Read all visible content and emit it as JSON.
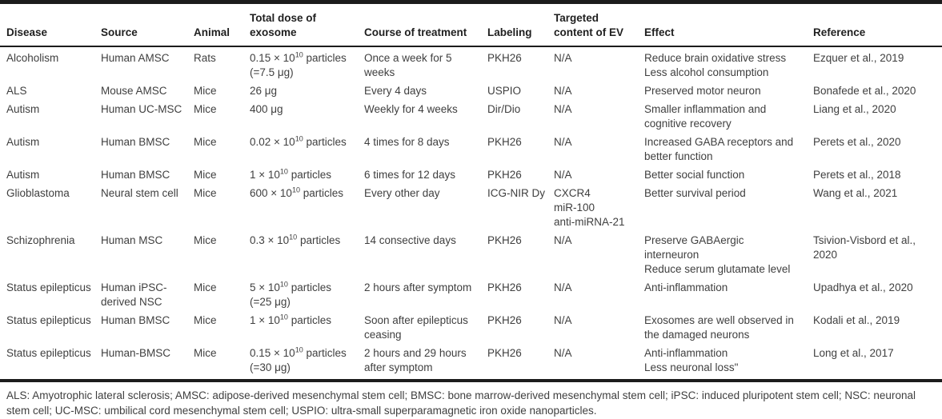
{
  "table": {
    "columns": [
      {
        "key": "disease",
        "label": "Disease"
      },
      {
        "key": "source",
        "label": "Source"
      },
      {
        "key": "animal",
        "label": "Animal"
      },
      {
        "key": "dose",
        "label": "Total dose of\nexosome"
      },
      {
        "key": "course",
        "label": "Course of treatment"
      },
      {
        "key": "labeling",
        "label": "Labeling"
      },
      {
        "key": "targeted",
        "label": "Targeted\ncontent of EV"
      },
      {
        "key": "effect",
        "label": "Effect"
      },
      {
        "key": "reference",
        "label": "Reference"
      }
    ],
    "rows": [
      {
        "disease": "Alcoholism",
        "source": "Human AMSC",
        "animal": "Rats",
        "dose": "0.15 × 10^{10} particles\n(=7.5 μg)",
        "course": "Once a week for 5\nweeks",
        "labeling": "PKH26",
        "targeted": "N/A",
        "effect": "Reduce brain oxidative stress\nLess alcohol consumption",
        "reference": "Ezquer et al., 2019"
      },
      {
        "disease": "ALS",
        "source": "Mouse AMSC",
        "animal": "Mice",
        "dose": "26 μg",
        "course": "Every 4 days",
        "labeling": "USPIO",
        "targeted": "N/A",
        "effect": "Preserved motor neuron",
        "reference": "Bonafede et al., 2020"
      },
      {
        "disease": "Autism",
        "source": "Human UC-MSC",
        "animal": "Mice",
        "dose": "400 μg",
        "course": "Weekly for 4 weeks",
        "labeling": "Dir/Dio",
        "targeted": "N/A",
        "effect": "Smaller inflammation and\ncognitive recovery",
        "reference": "Liang et al., 2020"
      },
      {
        "disease": "Autism",
        "source": "Human BMSC",
        "animal": "Mice",
        "dose": "0.02 × 10^{10} particles",
        "course": "4 times for 8 days",
        "labeling": "PKH26",
        "targeted": "N/A",
        "effect": "Increased GABA receptors and\nbetter function",
        "reference": "Perets et al., 2020"
      },
      {
        "disease": "Autism",
        "source": "Human BMSC",
        "animal": "Mice",
        "dose": "1 × 10^{10} particles",
        "course": "6 times for 12 days",
        "labeling": "PKH26",
        "targeted": "N/A",
        "effect": "Better social function",
        "reference": "Perets et al., 2018"
      },
      {
        "disease": "Glioblastoma",
        "source": "Neural stem cell",
        "animal": "Mice",
        "dose": "600 × 10^{10} particles",
        "course": "Every other day",
        "labeling": "ICG-NIR Dy",
        "targeted": "CXCR4\nmiR-100\nanti-miRNA-21",
        "effect": "Better survival period",
        "reference": "Wang et al., 2021"
      },
      {
        "disease": "Schizophrenia",
        "source": "Human MSC",
        "animal": "Mice",
        "dose": "0.3 × 10^{10} particles",
        "course": "14 consective days",
        "labeling": "PKH26",
        "targeted": "N/A",
        "effect": "Preserve GABAergic\ninterneuron\nReduce serum glutamate level",
        "reference": "Tsivion-Visbord et al.,\n2020"
      },
      {
        "disease": "Status epilepticus",
        "source": "Human iPSC-\nderived NSC",
        "animal": "Mice",
        "dose": "5 × 10^{10} particles\n(=25 μg)",
        "course": "2 hours after symptom",
        "labeling": "PKH26",
        "targeted": "N/A",
        "effect": "Anti-inflammation",
        "reference": "Upadhya et al., 2020"
      },
      {
        "disease": "Status epilepticus",
        "source": "Human BMSC",
        "animal": "Mice",
        "dose": "1 × 10^{10} particles",
        "course": "Soon after epilepticus\nceasing",
        "labeling": "PKH26",
        "targeted": "N/A",
        "effect": "Exosomes are well observed in\nthe damaged neurons",
        "reference": "Kodali et al., 2019"
      },
      {
        "disease": "Status epilepticus",
        "source": "Human-BMSC",
        "animal": "Mice",
        "dose": "0.15 × 10^{10} particles\n(=30 μg)",
        "course": "2 hours and 29 hours\nafter symptom",
        "labeling": "PKH26",
        "targeted": "N/A",
        "effect": "Anti-inflammation\nLess neuronal loss\"",
        "reference": "Long et al., 2017"
      }
    ]
  },
  "footnote": "ALS: Amyotrophic lateral sclerosis; AMSC: adipose-derived mesenchymal stem cell; BMSC: bone marrow-derived mesenchymal stem cell; iPSC: induced pluripotent stem cell; NSC: neuronal stem cell; UC-MSC: umbilical cord mesenchymal stem cell; USPIO: ultra-small superparamagnetic iron oxide nanoparticles.",
  "colors": {
    "text": "#3f3f3f",
    "heading": "#1f1f1f",
    "rule": "#1c1c1c",
    "background": "#ffffff"
  }
}
